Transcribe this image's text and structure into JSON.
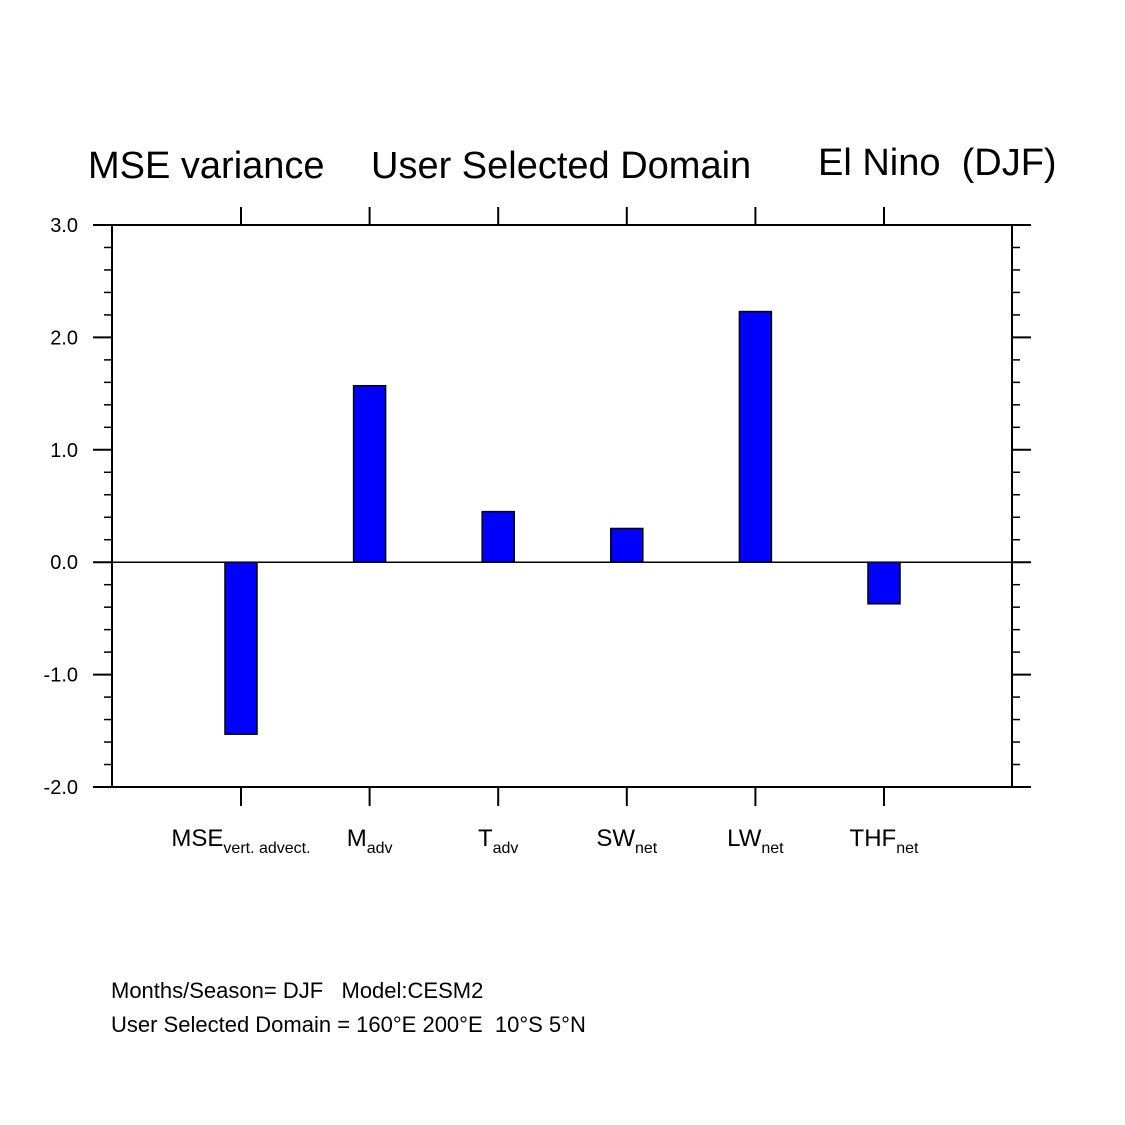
{
  "titles": {
    "left": "MSE variance",
    "center": "User Selected Domain",
    "right": "El Nino  (DJF)"
  },
  "chart_data": {
    "type": "bar",
    "categories": [
      {
        "main": "MSE",
        "sub": "vert. advect."
      },
      {
        "main": "M",
        "sub": "adv"
      },
      {
        "main": "T",
        "sub": "adv"
      },
      {
        "main": "SW",
        "sub": "net"
      },
      {
        "main": "LW",
        "sub": "net"
      },
      {
        "main": "THF",
        "sub": "net"
      }
    ],
    "values": [
      -1.53,
      1.57,
      0.45,
      0.3,
      2.23,
      -0.37
    ],
    "ylim": [
      -2.0,
      3.0
    ],
    "yticks": [
      "3.0",
      "2.0",
      "1.0",
      "0.0",
      "-1.0",
      "-2.0"
    ],
    "ytick_values": [
      3.0,
      2.0,
      1.0,
      0.0,
      -1.0,
      -2.0
    ],
    "bar_color": "#0000ff",
    "zero_line": true,
    "grid": false
  },
  "footer": {
    "line1": "Months/Season= DJF   Model:CESM2",
    "line2": "User Selected Domain = 160°E 200°E  10°S 5°N"
  }
}
